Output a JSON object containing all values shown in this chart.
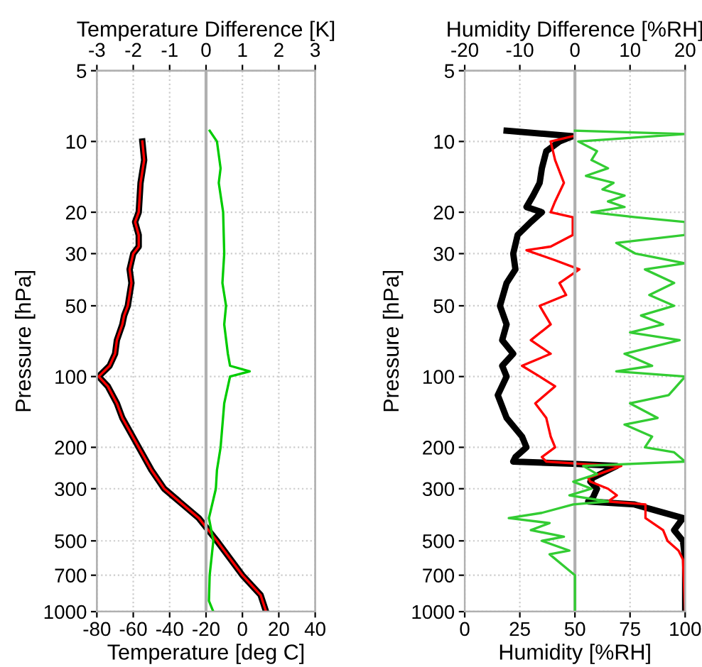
{
  "chart_data": [
    {
      "type": "line",
      "xlabel": "Temperature [deg C]",
      "x2label": "Temperature Difference [K]",
      "ylabel": "Pressure [hPa]",
      "log": "y",
      "grid": true,
      "xlim": [
        -80,
        40
      ],
      "xticks": [
        -80,
        -60,
        -40,
        -20,
        0,
        20,
        40
      ],
      "x2lim": [
        -3,
        3
      ],
      "x2ticks": [
        -3,
        -2,
        -1,
        0,
        1,
        2,
        3
      ],
      "ylim": [
        1000,
        5
      ],
      "yticks": [
        5,
        10,
        20,
        30,
        50,
        100,
        200,
        300,
        500,
        700,
        1000
      ],
      "ref_lines": [
        {
          "axis": "x2",
          "value": 0,
          "color": "#b0b0b0"
        }
      ],
      "series": [
        {
          "color": "#000000",
          "x": [
            -55,
            -54,
            -56,
            -57,
            -59,
            -57,
            -57,
            -60,
            -62,
            -61,
            -63,
            -65,
            -66,
            -69,
            -70,
            -73,
            -79,
            -74,
            -69,
            -66,
            -57,
            -50,
            -43,
            -24,
            -14,
            0,
            10,
            13
          ],
          "values": [
            10,
            12,
            15,
            20,
            22,
            25,
            28,
            30,
            35,
            40,
            50,
            55,
            60,
            70,
            80,
            90,
            100,
            110,
            130,
            150,
            200,
            250,
            300,
            400,
            500,
            700,
            850,
            1000
          ]
        },
        {
          "color": "#ff0000",
          "x": [
            -55,
            -54,
            -56,
            -57,
            -59,
            -57,
            -57,
            -60,
            -62,
            -61,
            -63,
            -65,
            -66,
            -69,
            -70,
            -73,
            -79,
            -74,
            -69,
            -66,
            -57,
            -50,
            -43,
            -24,
            -14,
            0,
            10,
            13
          ],
          "values": [
            10,
            12,
            15,
            20,
            22,
            25,
            28,
            30,
            35,
            40,
            50,
            55,
            60,
            70,
            80,
            90,
            100,
            110,
            130,
            150,
            200,
            250,
            300,
            400,
            500,
            700,
            850,
            1000
          ]
        },
        {
          "color": "#00cc00",
          "axis": "x2",
          "x": [
            0.1,
            0.3,
            0.4,
            0.35,
            0.47,
            0.5,
            0.45,
            0.55,
            0.5,
            0.6,
            0.66,
            1.2,
            0.66,
            0.5,
            0.4,
            0.3,
            0.27,
            0.08,
            0.2,
            0.1,
            0.08,
            0.2
          ],
          "values": [
            9,
            10,
            13,
            15,
            20,
            30,
            40,
            50,
            60,
            80,
            90,
            95,
            100,
            130,
            200,
            250,
            300,
            400,
            500,
            700,
            900,
            1000
          ]
        }
      ]
    },
    {
      "type": "line",
      "xlabel": "Humidity [%RH]",
      "x2label": "Humidity Difference [%RH]",
      "ylabel": "Pressure [hPa]",
      "log": "y",
      "grid": true,
      "xlim": [
        0,
        100
      ],
      "xticks": [
        0,
        25,
        50,
        75,
        100
      ],
      "x2lim": [
        -20,
        20
      ],
      "x2ticks": [
        -20,
        -10,
        0,
        10,
        20
      ],
      "ylim": [
        1000,
        5
      ],
      "yticks": [
        5,
        10,
        20,
        30,
        50,
        100,
        200,
        300,
        500,
        700,
        1000
      ],
      "ref_lines": [
        {
          "axis": "x2",
          "value": 0,
          "color": "#b0b0b0"
        }
      ],
      "series": [
        {
          "color": "#000000",
          "x": [
            19,
            49,
            43,
            37,
            35,
            34,
            31,
            28,
            35,
            30,
            24,
            22,
            23,
            19,
            16,
            19,
            17,
            22,
            17,
            19,
            15,
            19,
            26,
            28,
            23,
            22,
            49,
            69,
            58,
            57,
            60,
            58,
            56,
            77,
            99,
            95,
            99,
            100,
            100
          ],
          "values": [
            9,
            9.5,
            10,
            11,
            13,
            15,
            17,
            19,
            20,
            22,
            25,
            30,
            35,
            40,
            50,
            60,
            70,
            80,
            90,
            100,
            120,
            150,
            180,
            200,
            220,
            230,
            235,
            240,
            270,
            280,
            300,
            330,
            340,
            350,
            400,
            450,
            500,
            600,
            1000
          ]
        },
        {
          "color": "#ff0000",
          "x": [
            49,
            39,
            41,
            45,
            41,
            39,
            49,
            49,
            39,
            28,
            41,
            52,
            43,
            46,
            34,
            39,
            30,
            39,
            26,
            34,
            41,
            32,
            37,
            39,
            41,
            35,
            37,
            52,
            71,
            56,
            57,
            65,
            69,
            65,
            82,
            82,
            90,
            92,
            97,
            99,
            100
          ],
          "values": [
            9.5,
            10,
            12,
            15,
            18,
            20,
            21,
            25,
            28,
            29,
            32,
            35,
            40,
            45,
            50,
            60,
            70,
            80,
            90,
            100,
            110,
            130,
            150,
            180,
            200,
            220,
            230,
            235,
            240,
            270,
            280,
            300,
            320,
            340,
            350,
            400,
            450,
            500,
            550,
            600,
            1000
          ]
        },
        {
          "color": "#33cc33",
          "axis": "x2",
          "x": [
            0,
            20,
            0.6,
            4,
            3,
            6,
            2,
            7,
            5,
            9,
            6,
            9,
            3,
            11,
            20,
            20,
            20,
            7.5,
            11,
            20,
            12.7,
            18,
            13.5,
            18,
            12,
            16,
            10,
            19,
            9,
            14,
            7.5,
            20,
            17,
            10,
            15,
            9,
            14,
            12.7,
            18,
            20,
            1.5,
            4,
            -0.3,
            3,
            -1,
            6,
            -0.3,
            -6,
            -12,
            -4.6,
            -8,
            -2,
            -6,
            -1,
            -4.6,
            0,
            0
          ],
          "values": [
            9,
            9.3,
            10,
            11,
            12,
            13,
            14,
            15,
            16,
            17,
            18,
            19,
            20,
            21,
            22,
            23,
            25,
            27,
            30,
            33,
            35,
            40,
            45,
            50,
            55,
            60,
            65,
            70,
            80,
            90,
            95,
            100,
            120,
            130,
            150,
            160,
            180,
            200,
            210,
            230,
            240,
            260,
            280,
            300,
            320,
            340,
            350,
            380,
            400,
            420,
            450,
            480,
            500,
            550,
            570,
            700,
            1000
          ]
        }
      ]
    }
  ]
}
